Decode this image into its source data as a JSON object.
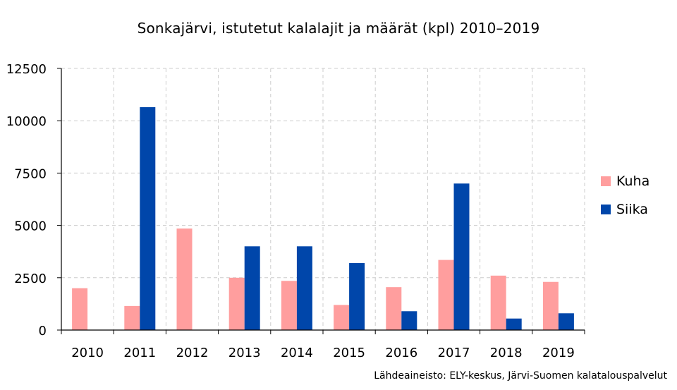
{
  "chart_data": {
    "type": "bar",
    "title": "Sonkajärvi, istutetut kalalajit ja määrät (kpl) 2010–2019",
    "categories": [
      "2010",
      "2011",
      "2012",
      "2013",
      "2014",
      "2015",
      "2016",
      "2017",
      "2018",
      "2019"
    ],
    "series": [
      {
        "name": "Kuha",
        "color": "#ff9e9e",
        "values": [
          2000,
          1150,
          4850,
          2500,
          2350,
          1200,
          2050,
          3350,
          2600,
          2300
        ]
      },
      {
        "name": "Siika",
        "color": "#0046aa",
        "values": [
          0,
          10650,
          0,
          4000,
          4000,
          3200,
          900,
          7000,
          550,
          800
        ]
      }
    ],
    "ylim": [
      0,
      12500
    ],
    "yticks": [
      "0",
      "2500",
      "5000",
      "7500",
      "10000",
      "12500"
    ],
    "grid": true,
    "legend_position": "right",
    "source": "Lähdeaineisto: ELY-keskus, Järvi-Suomen kalatalouspalvelut"
  }
}
